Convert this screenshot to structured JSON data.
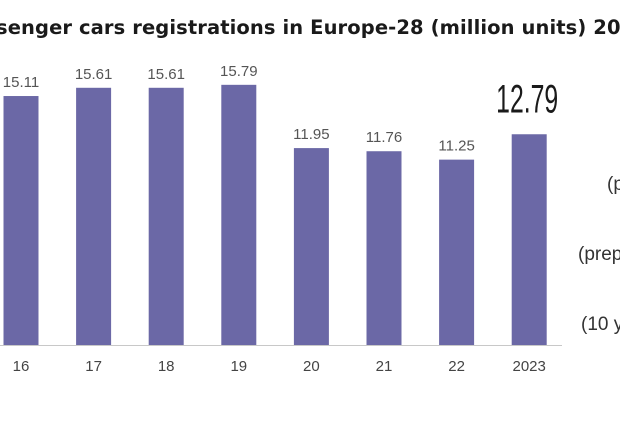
{
  "chart_data": {
    "type": "bar",
    "title": "senger cars registrations in Europe-28 (million units) 20",
    "categories": [
      "16",
      "17",
      "18",
      "19",
      "20",
      "21",
      "22",
      "2023"
    ],
    "values": [
      15.11,
      15.61,
      15.61,
      15.79,
      11.95,
      11.76,
      11.25,
      12.79
    ],
    "value_labels": [
      "15.11",
      "15.61",
      "15.61",
      "15.79",
      "11.95",
      "11.76",
      "11.25",
      "12.79"
    ],
    "highlight_index": 7,
    "bar_color": "#6b68a6",
    "xlabel": "",
    "ylabel": "",
    "ylim": [
      0,
      17.6
    ],
    "grid": false,
    "legend": "none",
    "side_notes": [
      "(p",
      "(prep",
      "(10 y"
    ]
  }
}
